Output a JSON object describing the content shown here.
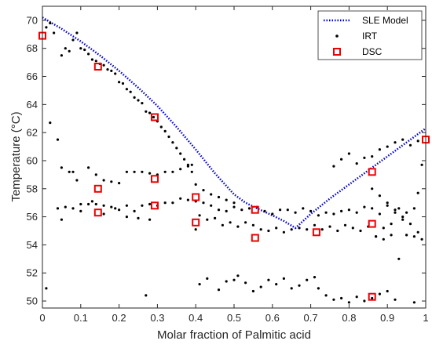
{
  "chart_data": {
    "type": "scatter",
    "xlabel": "Molar fraction of Palmitic acid",
    "ylabel": "Temperature (°C)",
    "xlim": [
      0,
      1
    ],
    "ylim": [
      49.5,
      71
    ],
    "x_ticks": [
      0,
      0.1,
      0.2,
      0.3,
      0.4,
      0.5,
      0.6,
      0.7,
      0.8,
      0.9,
      1
    ],
    "x_tick_labels": [
      "0",
      "0.1",
      "0.2",
      "0.3",
      "0.4",
      "0.5",
      "0.6",
      "0.7",
      "0.8",
      "0.9",
      "1"
    ],
    "y_ticks": [
      50,
      52,
      54,
      56,
      58,
      60,
      62,
      64,
      66,
      68,
      70
    ],
    "y_tick_labels": [
      "50",
      "52",
      "54",
      "56",
      "58",
      "60",
      "62",
      "64",
      "66",
      "68",
      "70"
    ],
    "legend_position": "top-right",
    "colors": {
      "sle": "#0000cc",
      "irt": "#000000",
      "dsc": "#ee0000"
    },
    "series": [
      {
        "name": "SLE Model",
        "style": "dotted-line",
        "x": [
          0,
          0.05,
          0.1,
          0.15,
          0.2,
          0.25,
          0.3,
          0.35,
          0.4,
          0.45,
          0.5,
          0.53,
          0.56,
          0.6,
          0.63,
          0.66,
          0.7,
          0.75,
          0.8,
          0.85,
          0.9,
          0.95,
          1
        ],
        "y": [
          70.2,
          69.4,
          68.5,
          67.5,
          66.4,
          65.2,
          63.9,
          62.4,
          60.8,
          59.1,
          57.6,
          57.0,
          56.6,
          56.1,
          55.7,
          55.2,
          56.2,
          57.3,
          58.3,
          59.3,
          60.3,
          61.3,
          62.3
        ]
      },
      {
        "name": "IRT",
        "style": "dots",
        "x": [
          0.01,
          0.02,
          0.03,
          0.05,
          0.06,
          0.07,
          0.08,
          0.09,
          0.1,
          0.11,
          0.12,
          0.13,
          0.14,
          0.15,
          0.16,
          0.17,
          0.18,
          0.19,
          0.2,
          0.21,
          0.22,
          0.23,
          0.24,
          0.25,
          0.26,
          0.27,
          0.28,
          0.29,
          0.3,
          0.31,
          0.32,
          0.33,
          0.34,
          0.35,
          0.36,
          0.37,
          0.38,
          0.39,
          0.05,
          0.07,
          0.08,
          0.09,
          0.12,
          0.14,
          0.16,
          0.18,
          0.2,
          0.22,
          0.24,
          0.26,
          0.28,
          0.3,
          0.32,
          0.34,
          0.36,
          0.38,
          0.39,
          0.4,
          0.42,
          0.44,
          0.46,
          0.48,
          0.5,
          0.04,
          0.06,
          0.08,
          0.1,
          0.12,
          0.14,
          0.16,
          0.18,
          0.2,
          0.22,
          0.24,
          0.26,
          0.28,
          0.3,
          0.32,
          0.34,
          0.36,
          0.38,
          0.4,
          0.42,
          0.44,
          0.46,
          0.48,
          0.5,
          0.52,
          0.54,
          0.56,
          0.58,
          0.6,
          0.62,
          0.64,
          0.66,
          0.68,
          0.7,
          0.72,
          0.74,
          0.76,
          0.78,
          0.8,
          0.82,
          0.84,
          0.86,
          0.88,
          0.9,
          0.92,
          0.94,
          0.02,
          0.04,
          0.05,
          0.1,
          0.13,
          0.16,
          0.19,
          0.22,
          0.25,
          0.28,
          0.4,
          0.41,
          0.43,
          0.45,
          0.47,
          0.49,
          0.51,
          0.53,
          0.55,
          0.57,
          0.59,
          0.61,
          0.63,
          0.65,
          0.67,
          0.69,
          0.71,
          0.73,
          0.75,
          0.77,
          0.79,
          0.81,
          0.83,
          0.85,
          0.87,
          0.89,
          0.91,
          0.76,
          0.78,
          0.8,
          0.82,
          0.84,
          0.86,
          0.88,
          0.9,
          0.92,
          0.94,
          0.96,
          0.98,
          0.86,
          0.88,
          0.9,
          0.92,
          0.93,
          0.94,
          0.95,
          0.96,
          0.97,
          0.98,
          0.99,
          0.87,
          0.89,
          0.91,
          0.93,
          0.95,
          0.97,
          0.98,
          0.99,
          0.41,
          0.43,
          0.46,
          0.48,
          0.5,
          0.51,
          0.53,
          0.55,
          0.57,
          0.59,
          0.61,
          0.63,
          0.65,
          0.67,
          0.69,
          0.71,
          0.72,
          0.74,
          0.76,
          0.78,
          0.8,
          0.82,
          0.84,
          0.86,
          0.88,
          0.9,
          0.01,
          0.27,
          0.92,
          0.97
        ],
        "y": [
          69.5,
          69.8,
          69.1,
          67.5,
          68.0,
          67.8,
          68.6,
          69.1,
          68.0,
          67.9,
          67.6,
          67.2,
          67.1,
          66.9,
          66.8,
          66.5,
          66.4,
          66.2,
          65.6,
          65.5,
          65.1,
          64.9,
          64.5,
          64.3,
          64.1,
          63.5,
          63.4,
          63.1,
          62.8,
          62.4,
          62.1,
          61.7,
          61.3,
          60.9,
          60.5,
          60.1,
          59.7,
          59.2,
          59.5,
          59.2,
          59.2,
          58.6,
          59.5,
          59.0,
          58.6,
          58.5,
          58.4,
          59.2,
          59.2,
          59.2,
          59.1,
          59.0,
          59.2,
          59.2,
          59.4,
          59.6,
          59.7,
          58.3,
          57.9,
          57.6,
          57.4,
          57.2,
          57.0,
          56.6,
          56.7,
          56.6,
          56.9,
          56.9,
          56.9,
          56.8,
          56.7,
          56.5,
          56.8,
          56.4,
          56.8,
          56.9,
          56.8,
          57.0,
          57.0,
          57.3,
          57.2,
          57.1,
          57.0,
          56.8,
          56.5,
          56.4,
          56.7,
          56.5,
          56.6,
          56.7,
          56.4,
          56.2,
          56.5,
          56.5,
          56.3,
          56.6,
          56.4,
          56.1,
          56.3,
          56.2,
          56.4,
          56.5,
          56.3,
          56.7,
          56.6,
          56.2,
          56.8,
          56.3,
          56.0,
          62.7,
          61.5,
          55.8,
          56.4,
          57.1,
          56.2,
          56.6,
          56.0,
          55.9,
          55.8,
          55.1,
          56.1,
          55.8,
          55.9,
          55.4,
          55.6,
          55.3,
          55.6,
          55.4,
          55.1,
          55.0,
          55.2,
          54.9,
          55.1,
          55.2,
          55.1,
          55.4,
          55.1,
          55.3,
          55.0,
          55.4,
          55.2,
          55.0,
          55.3,
          54.6,
          55.2,
          54.7,
          59.6,
          60.1,
          60.5,
          59.8,
          60.2,
          60.3,
          60.8,
          61.0,
          61.3,
          61.5,
          61.1,
          61.4,
          58.0,
          57.5,
          57.0,
          56.5,
          56.6,
          55.8,
          56.3,
          55.5,
          56.6,
          57.7,
          59.7,
          54.6,
          54.4,
          55.5,
          53.0,
          54.7,
          54.6,
          54.9,
          54.4,
          51.2,
          51.6,
          50.8,
          51.4,
          51.5,
          51.8,
          51.3,
          50.7,
          51.0,
          51.5,
          51.2,
          51.6,
          50.9,
          51.1,
          51.5,
          51.7,
          50.9,
          50.4,
          50.1,
          50.2,
          49.9,
          50.3,
          50.0,
          50.2,
          50.5,
          50.7,
          50.9,
          50.4,
          50.1,
          49.9
        ]
      },
      {
        "name": "DSC",
        "style": "open-square",
        "x": [
          0,
          0.145,
          0.145,
          0.145,
          0.293,
          0.293,
          0.293,
          0.4,
          0.4,
          0.555,
          0.555,
          0.715,
          0.86,
          0.86,
          0.86,
          1
        ],
        "y": [
          68.9,
          66.7,
          58.0,
          56.3,
          63.1,
          58.7,
          56.8,
          57.4,
          55.6,
          56.5,
          54.5,
          54.9,
          59.2,
          55.5,
          50.3,
          61.5
        ]
      }
    ]
  }
}
